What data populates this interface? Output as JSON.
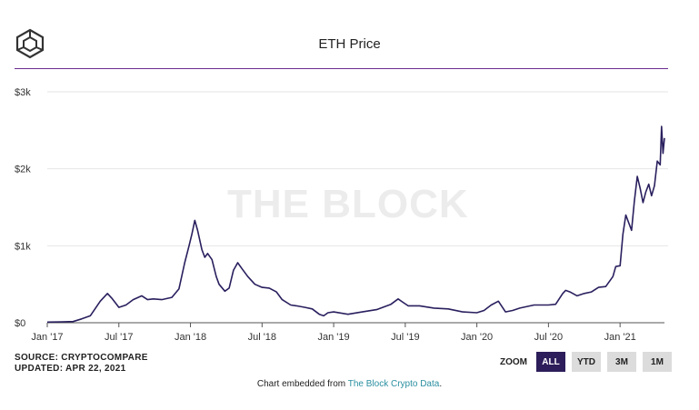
{
  "header": {
    "title": "ETH Price",
    "logo_icon": "the-block-cube-icon"
  },
  "watermark": "THE BLOCK",
  "footer": {
    "source": "SOURCE: CRYPTOCOMPARE",
    "updated": "UPDATED: APR 22, 2021",
    "embed_prefix": "Chart embedded from ",
    "embed_link": "The Block Crypto Data",
    "embed_suffix": "."
  },
  "zoom": {
    "label": "ZOOM",
    "buttons": [
      "ALL",
      "YTD",
      "3M",
      "1M"
    ],
    "active": "ALL"
  },
  "colors": {
    "line": "#2a1f5e",
    "accent": "#6b2d8f",
    "active_button": "#2d1d5a",
    "link": "#2a8fa0"
  },
  "chart_data": {
    "type": "line",
    "title": "ETH Price",
    "xlabel": "",
    "ylabel": "",
    "xlim": [
      2017.0,
      2021.31
    ],
    "ylim": [
      0,
      3000
    ],
    "grid": true,
    "x_ticks": [
      {
        "label": "Jan '17",
        "value": 2017.0
      },
      {
        "label": "Jul '17",
        "value": 2017.5
      },
      {
        "label": "Jan '18",
        "value": 2018.0
      },
      {
        "label": "Jul '18",
        "value": 2018.5
      },
      {
        "label": "Jan '19",
        "value": 2019.0
      },
      {
        "label": "Jul '19",
        "value": 2019.5
      },
      {
        "label": "Jan '20",
        "value": 2020.0
      },
      {
        "label": "Jul '20",
        "value": 2020.5
      },
      {
        "label": "Jan '21",
        "value": 2021.0
      }
    ],
    "y_ticks": [
      {
        "label": "$0",
        "value": 0
      },
      {
        "label": "$1k",
        "value": 1000
      },
      {
        "label": "$2k",
        "value": 2000
      },
      {
        "label": "$3k",
        "value": 3000
      }
    ],
    "series": [
      {
        "name": "ETH Price",
        "x": [
          2017.0,
          2017.1,
          2017.18,
          2017.24,
          2017.3,
          2017.37,
          2017.42,
          2017.45,
          2017.5,
          2017.55,
          2017.6,
          2017.66,
          2017.7,
          2017.74,
          2017.8,
          2017.87,
          2017.92,
          2017.96,
          2017.99,
          2018.01,
          2018.03,
          2018.05,
          2018.08,
          2018.1,
          2018.12,
          2018.15,
          2018.18,
          2018.2,
          2018.24,
          2018.27,
          2018.3,
          2018.33,
          2018.36,
          2018.4,
          2018.45,
          2018.5,
          2018.55,
          2018.6,
          2018.64,
          2018.7,
          2018.74,
          2018.8,
          2018.85,
          2018.9,
          2018.93,
          2018.96,
          2019.0,
          2019.1,
          2019.2,
          2019.3,
          2019.4,
          2019.45,
          2019.48,
          2019.52,
          2019.6,
          2019.7,
          2019.8,
          2019.9,
          2020.0,
          2020.05,
          2020.1,
          2020.15,
          2020.2,
          2020.25,
          2020.3,
          2020.4,
          2020.5,
          2020.55,
          2020.6,
          2020.62,
          2020.65,
          2020.7,
          2020.75,
          2020.8,
          2020.85,
          2020.9,
          2020.95,
          2020.97,
          2021.0,
          2021.02,
          2021.04,
          2021.06,
          2021.08,
          2021.1,
          2021.12,
          2021.14,
          2021.16,
          2021.18,
          2021.2,
          2021.22,
          2021.24,
          2021.26,
          2021.28,
          2021.29,
          2021.3,
          2021.31
        ],
        "values": [
          8,
          11,
          15,
          50,
          90,
          280,
          380,
          320,
          200,
          230,
          300,
          350,
          300,
          310,
          300,
          330,
          440,
          780,
          1000,
          1150,
          1330,
          1200,
          950,
          850,
          900,
          820,
          600,
          500,
          410,
          450,
          680,
          780,
          700,
          600,
          500,
          460,
          450,
          400,
          300,
          230,
          220,
          200,
          180,
          110,
          90,
          130,
          140,
          110,
          140,
          170,
          240,
          310,
          270,
          220,
          220,
          190,
          180,
          140,
          130,
          160,
          230,
          280,
          140,
          160,
          190,
          230,
          230,
          240,
          380,
          420,
          400,
          350,
          380,
          400,
          460,
          470,
          600,
          730,
          740,
          1150,
          1400,
          1300,
          1200,
          1580,
          1900,
          1750,
          1560,
          1700,
          1800,
          1650,
          1780,
          2100,
          2050,
          2550,
          2200,
          2400
        ]
      }
    ]
  }
}
